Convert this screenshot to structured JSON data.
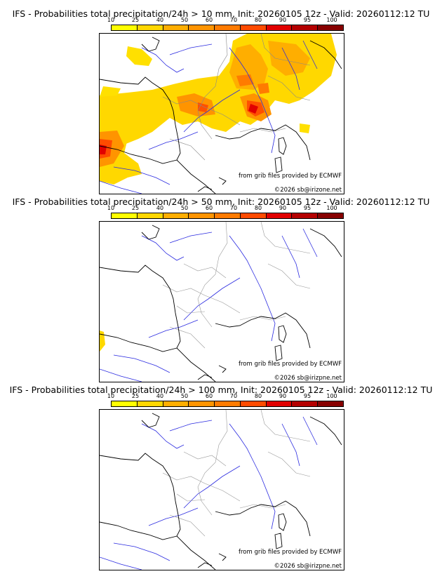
{
  "panels": [
    {
      "title": "IFS - Probabilities total precipitation/24h > 10 mm, Init: 20260105 12z - Valid: 20260112:12 TU",
      "legend_ticks": [
        "10",
        "25",
        "40",
        "50",
        "60",
        "70",
        "80",
        "90",
        "95",
        "100"
      ],
      "credit": "from grib files provided by ECMWF",
      "copyright": "©2026 sb@irizone.net"
    },
    {
      "title": "IFS - Probabilities total precipitation/24h > 50 mm, Init: 20260105 12z - Valid: 20260112:12 TU",
      "legend_ticks": [
        "10",
        "25",
        "40",
        "50",
        "60",
        "70",
        "80",
        "90",
        "95",
        "100"
      ],
      "credit": "from grib files provided by ECMWF",
      "copyright": "©2026 sb@irizpne.net"
    },
    {
      "title": "IFS - Probabilities total precipitation/24h > 100 mm, Init: 20260105 12z - Valid: 20260112:12 TU",
      "legend_ticks": [
        "10",
        "25",
        "40",
        "50",
        "60",
        "70",
        "80",
        "90",
        "95",
        "100"
      ],
      "credit": "from grib files provided by ECMWF",
      "copyright": "©2026 sb@irizpne.net"
    }
  ],
  "colors": {
    "scale": [
      "#ffff00",
      "#ffd700",
      "#ffae00",
      "#ff9400",
      "#ff7b00",
      "#ff4b00",
      "#e10000",
      "#b40000",
      "#870000",
      "#550000"
    ],
    "coast": "#000000",
    "rivers": "#2a2ae0",
    "borders": "#999999"
  }
}
